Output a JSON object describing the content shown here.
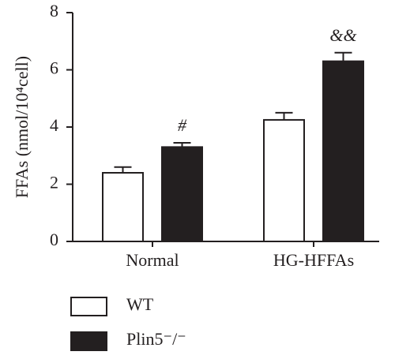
{
  "chart_data": {
    "type": "bar",
    "y_label": "FFAs (nmol/10⁴cell)",
    "categories": [
      "Normal",
      "HG-HFFAs"
    ],
    "series": [
      {
        "name": "WT",
        "color": "#ffffff",
        "values": [
          2.4,
          4.25
        ],
        "errors": [
          0.2,
          0.25
        ]
      },
      {
        "name": "Plin5⁻/⁻",
        "color": "#231f20",
        "values": [
          3.3,
          6.3
        ],
        "errors": [
          0.15,
          0.3
        ],
        "markers": [
          "#",
          "&&"
        ]
      }
    ],
    "ylim": [
      0,
      8
    ],
    "yticks": [
      0,
      2,
      4,
      6,
      8
    ],
    "grid": false
  }
}
